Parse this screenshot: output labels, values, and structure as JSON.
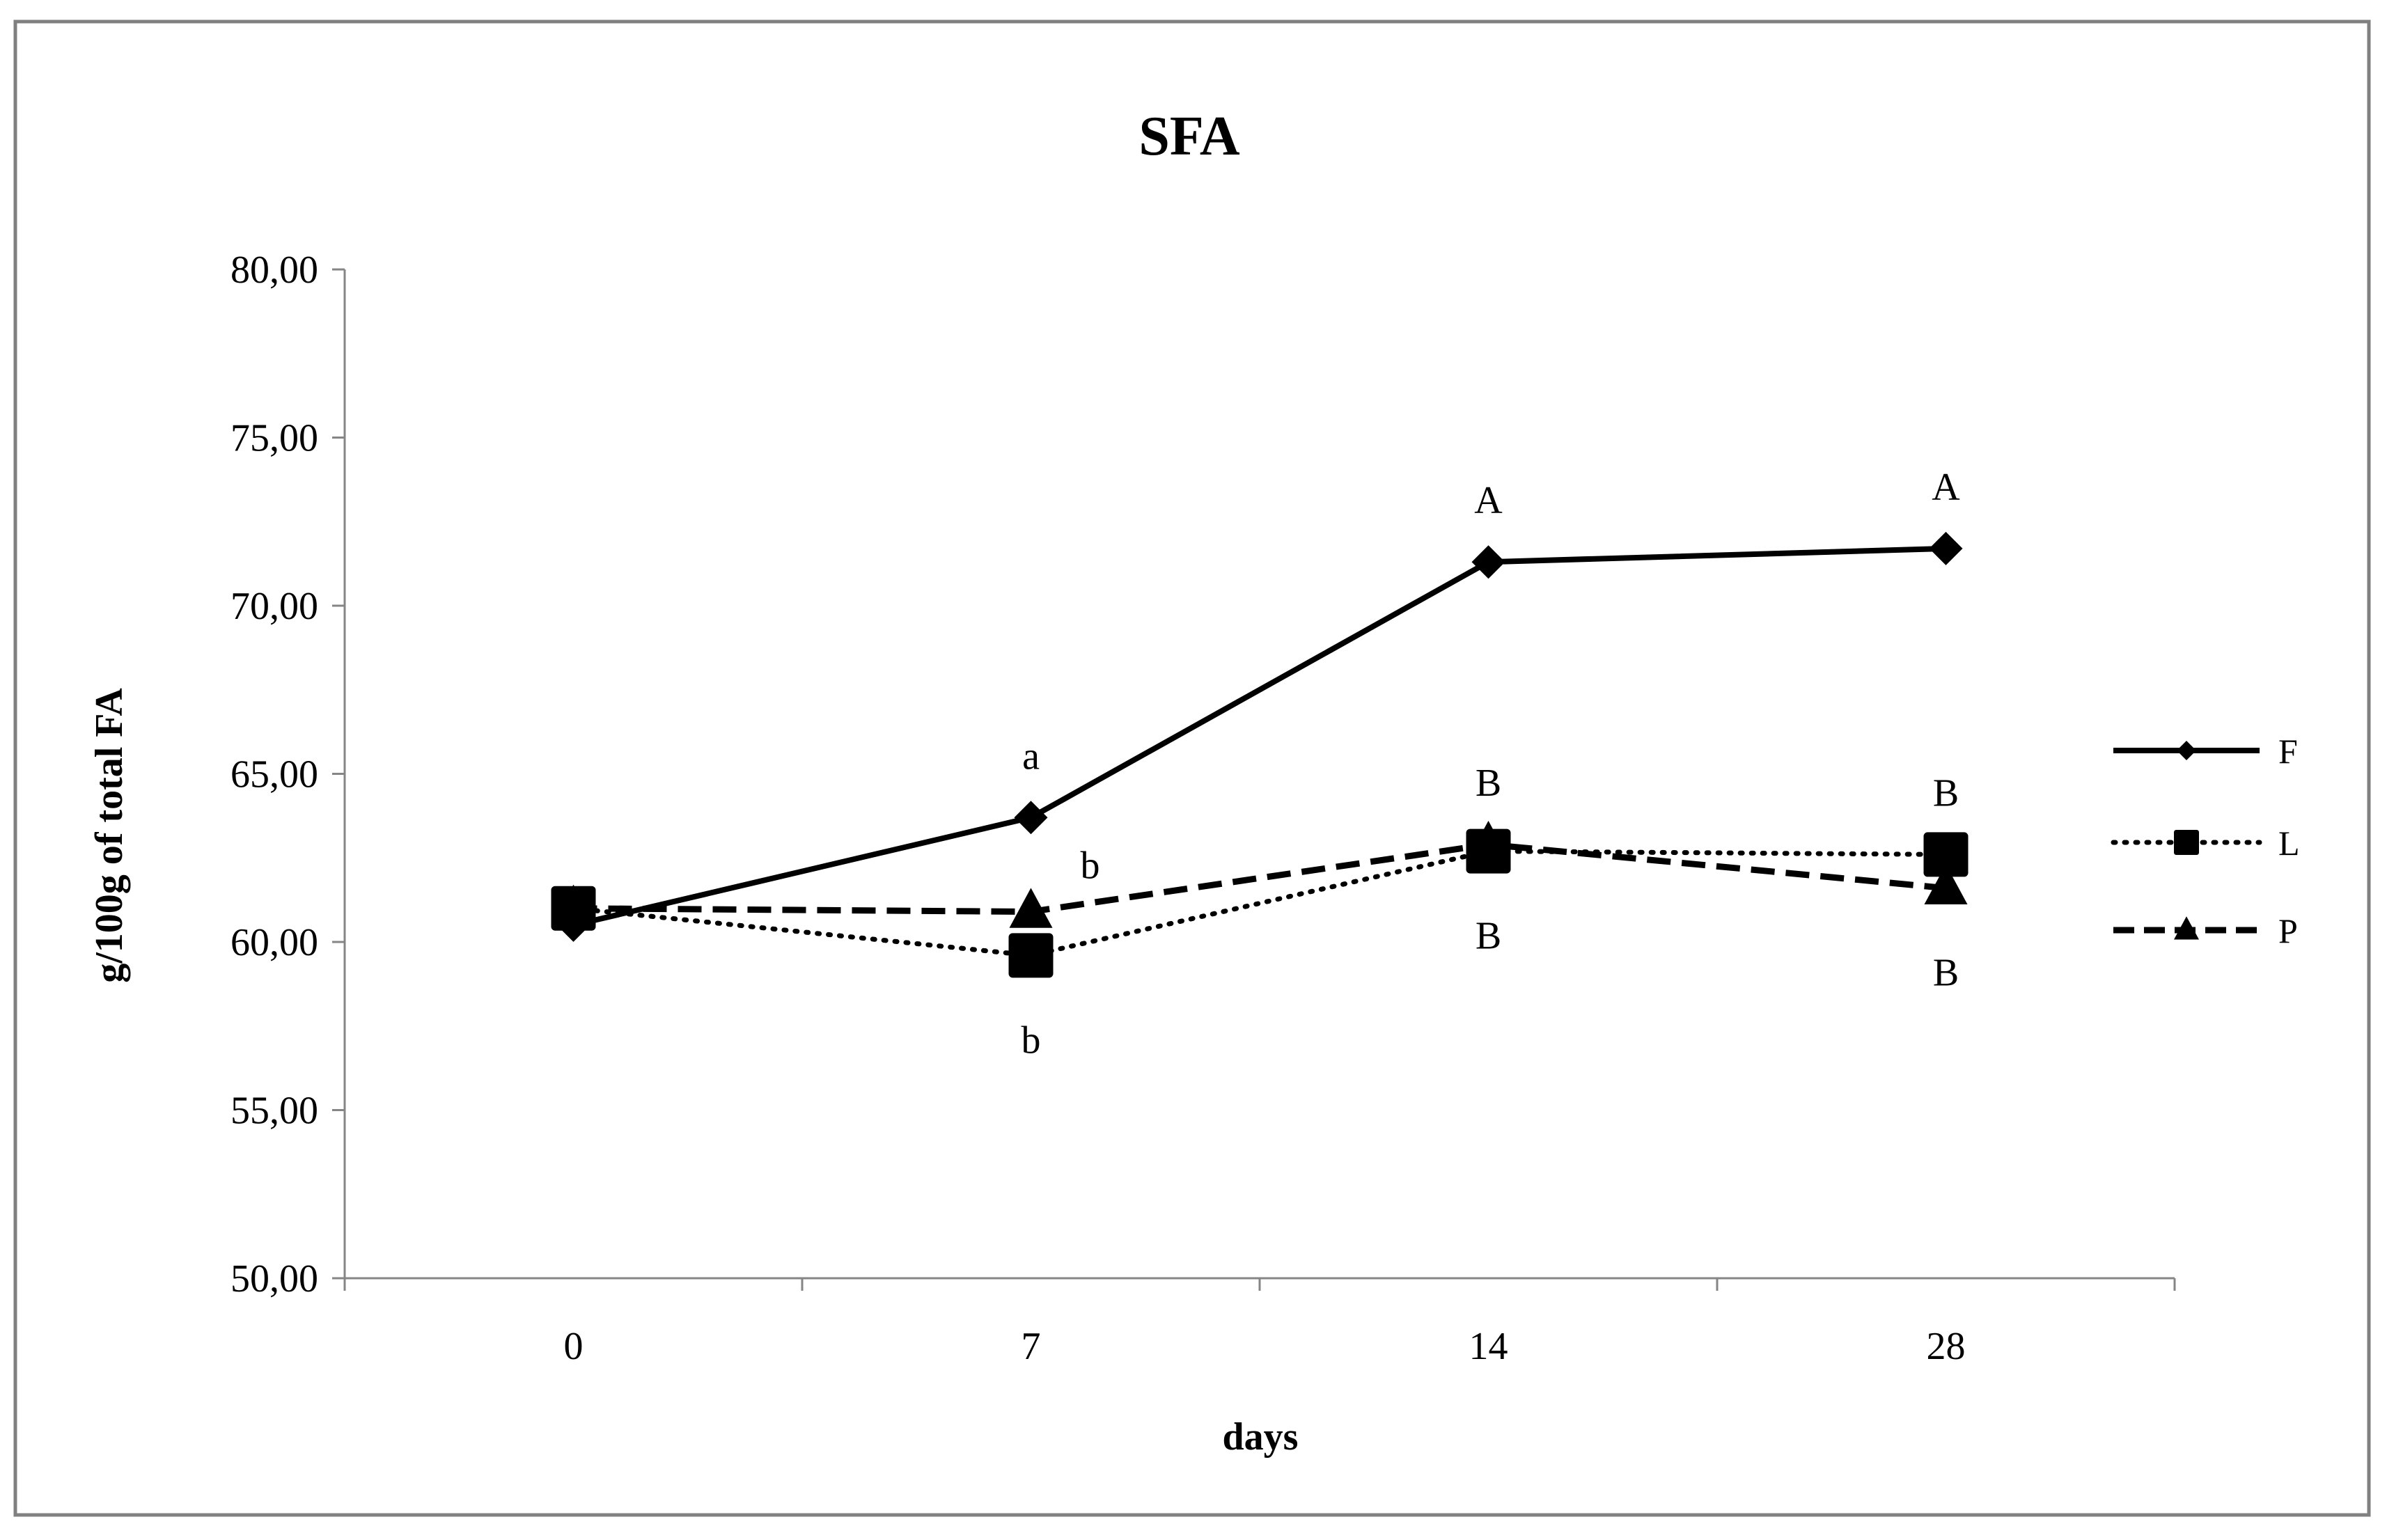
{
  "chart_data": {
    "type": "line",
    "title": "SFA",
    "xlabel": "days",
    "ylabel": "g/100g of total FA",
    "categories": [
      "0",
      "7",
      "14",
      "28"
    ],
    "ylim": [
      50,
      80
    ],
    "yticks": [
      50,
      55,
      60,
      65,
      70,
      75,
      80
    ],
    "ytick_labels": [
      "50,00",
      "55,00",
      "60,00",
      "65,00",
      "70,00",
      "75,00",
      "80,00"
    ],
    "grid": false,
    "legend_position": "right",
    "series": [
      {
        "name": "F",
        "values": [
          60.5,
          63.7,
          71.3,
          71.7
        ],
        "line_style": "solid",
        "marker": "diamond"
      },
      {
        "name": "L",
        "values": [
          61.0,
          59.6,
          62.7,
          62.6
        ],
        "line_style": "dotted",
        "marker": "square"
      },
      {
        "name": "P",
        "values": [
          61.0,
          60.9,
          62.9,
          61.6
        ],
        "line_style": "dashed",
        "marker": "triangle"
      }
    ],
    "annotations": [
      {
        "text": "a",
        "category": "7",
        "series": "F",
        "placement": "above"
      },
      {
        "text": "b",
        "category": "7",
        "series": "P",
        "placement": "right"
      },
      {
        "text": "b",
        "category": "7",
        "series": "L",
        "placement": "below"
      },
      {
        "text": "A",
        "category": "14",
        "series": "F",
        "placement": "above"
      },
      {
        "text": "B",
        "category": "14",
        "series": "P",
        "placement": "above"
      },
      {
        "text": "B",
        "category": "14",
        "series": "L",
        "placement": "below"
      },
      {
        "text": "A",
        "category": "28",
        "series": "F",
        "placement": "above"
      },
      {
        "text": "B",
        "category": "28",
        "series": "L",
        "placement": "above"
      },
      {
        "text": "B",
        "category": "28",
        "series": "P",
        "placement": "below"
      }
    ],
    "colors": {
      "line": "#000000",
      "frame": "#808080",
      "axis": "#858585",
      "background": "#ffffff"
    }
  }
}
